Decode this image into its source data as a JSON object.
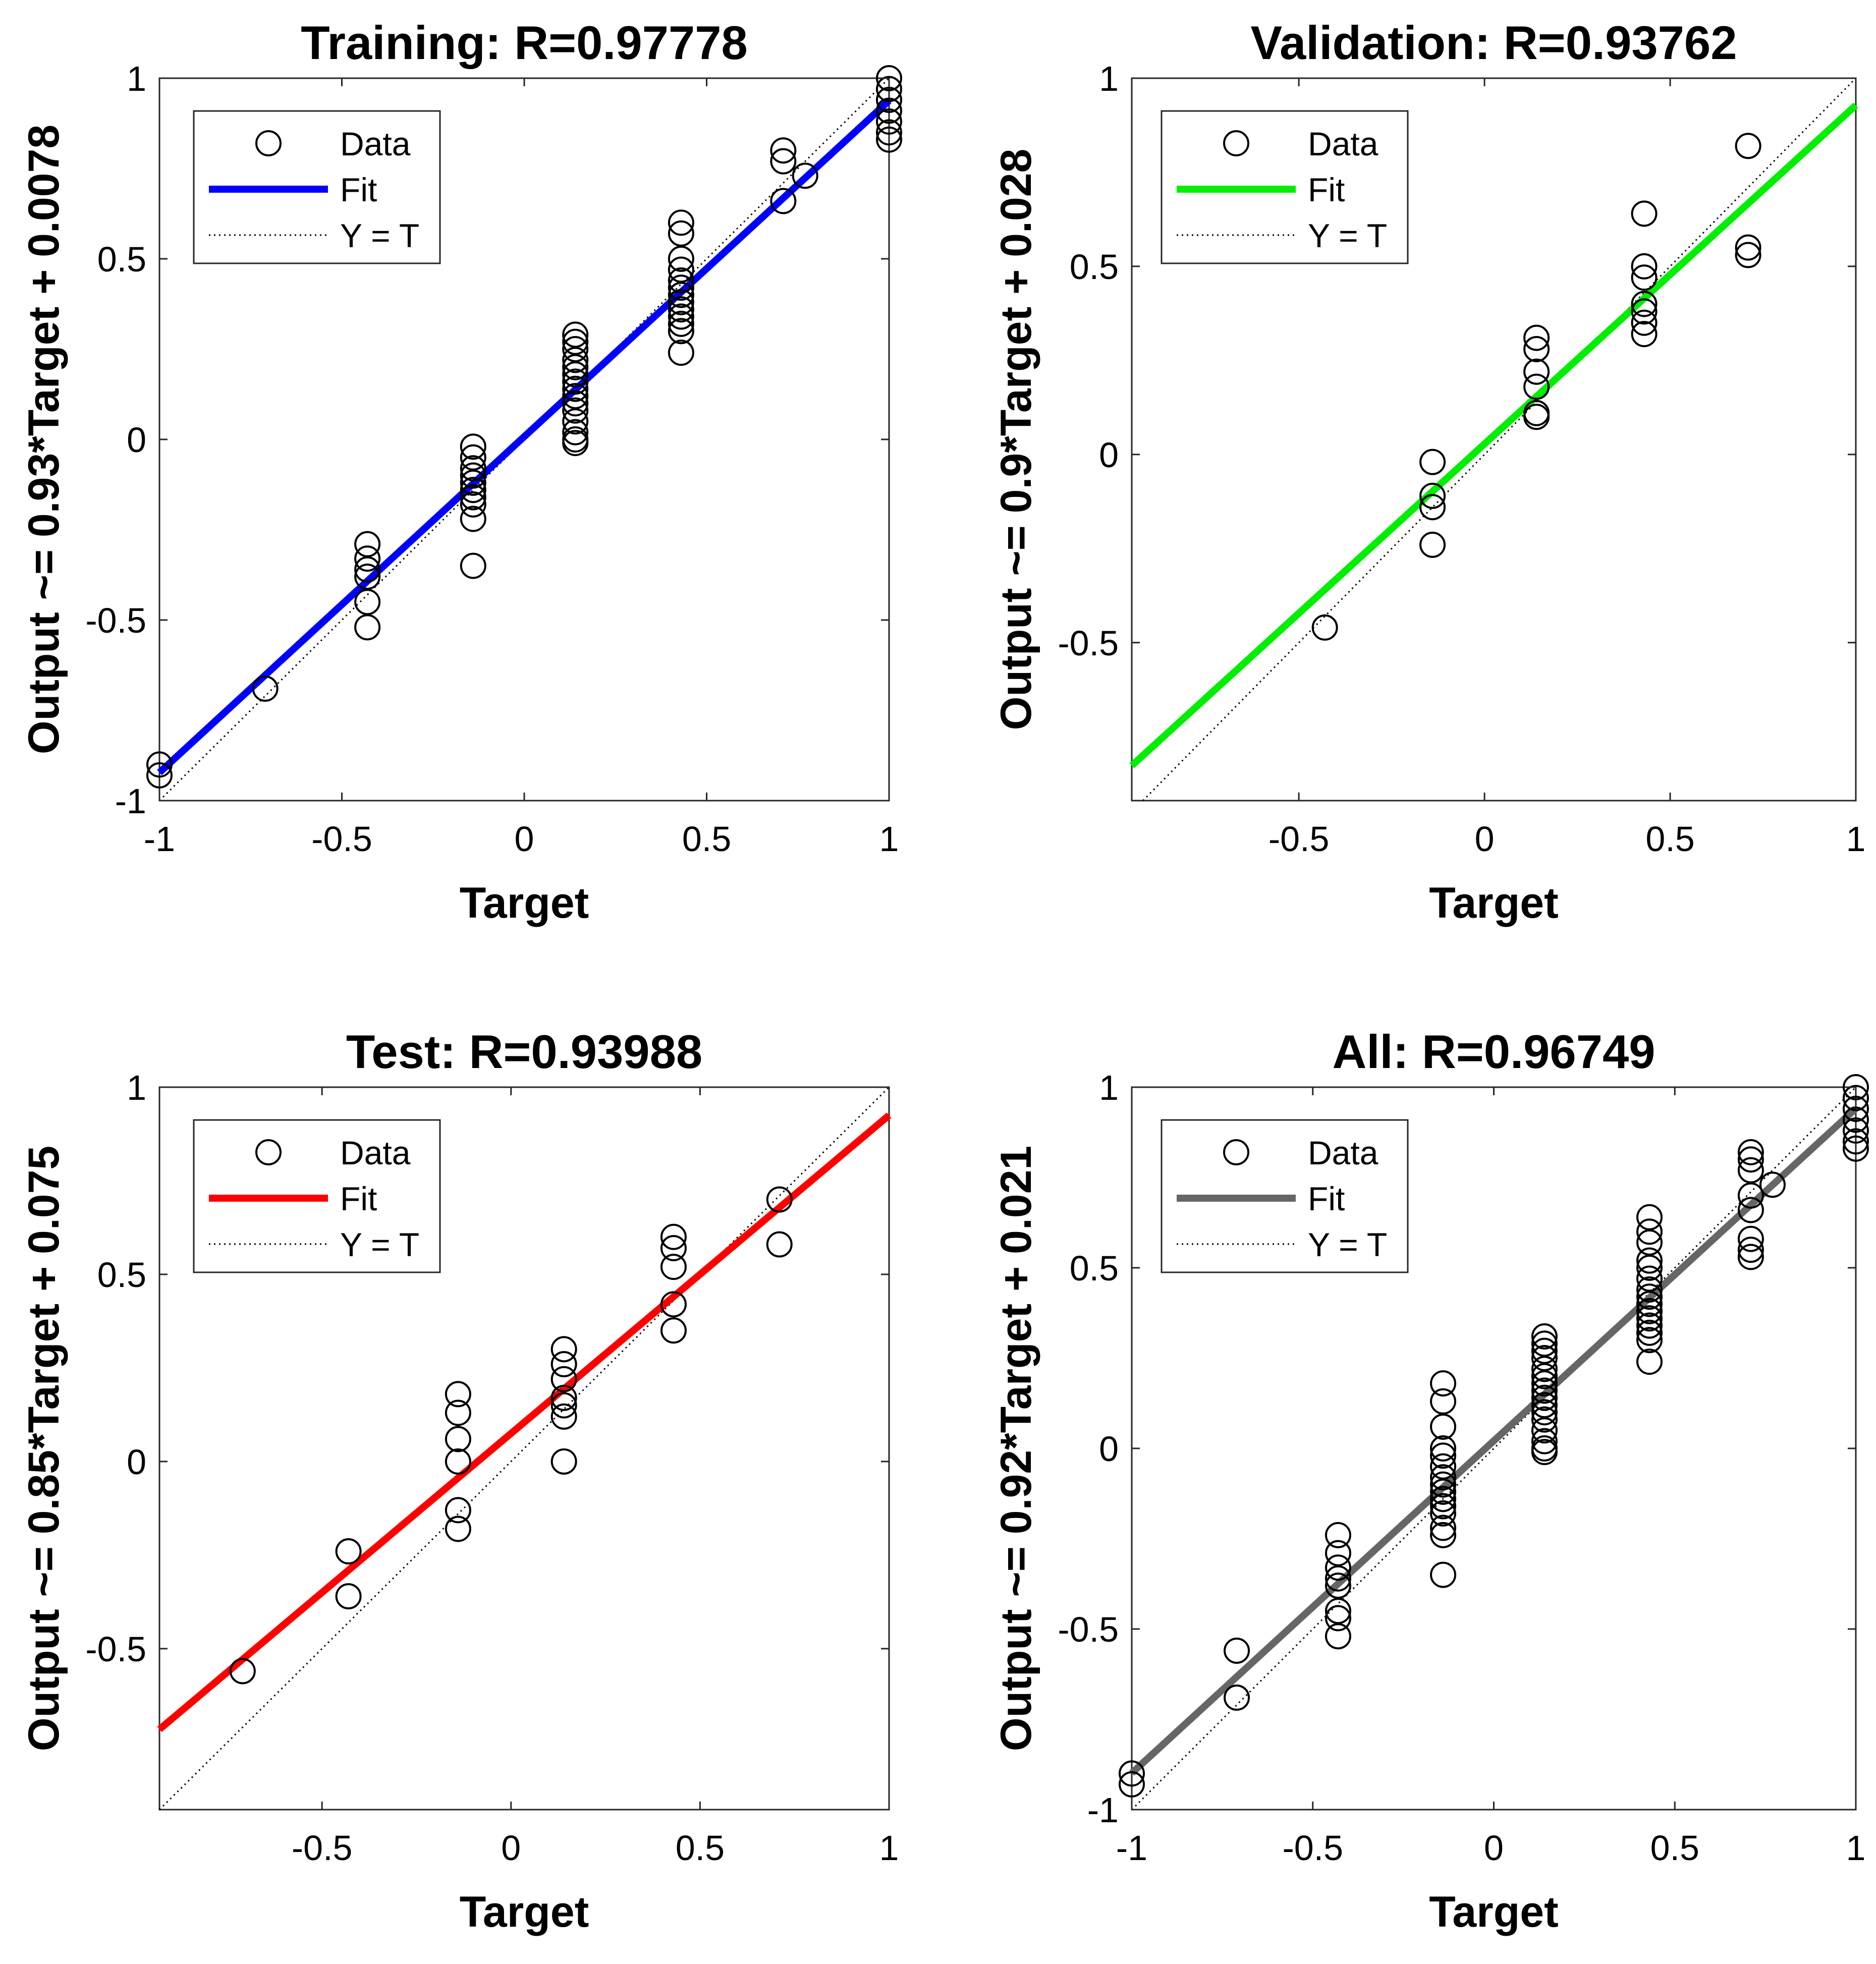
{
  "chart_data": [
    {
      "type": "scatter",
      "title": "Training: R=0.97778",
      "xlabel": "Target",
      "ylabel": "Output ~= 0.93*Target + 0.0078",
      "xlim": [
        -1,
        1
      ],
      "ylim": [
        -1,
        1
      ],
      "xticks": [
        -1,
        -0.5,
        0,
        0.5,
        1
      ],
      "xtick_labels": [
        "-1",
        "-0.5",
        "0",
        "0.5",
        "1"
      ],
      "yticks": [
        -1,
        -0.5,
        0,
        0.5,
        1
      ],
      "ytick_labels": [
        "-1",
        "-0.5",
        "0",
        "0.5",
        "1"
      ],
      "legend_position": "top-left",
      "legend": [
        "Data",
        "Fit",
        "Y = T"
      ],
      "fit": {
        "slope": 0.93,
        "intercept": 0.0078,
        "color": "#0000ff"
      },
      "points": [
        [
          -1,
          -0.9
        ],
        [
          -1,
          -0.93
        ],
        [
          -0.71,
          -0.69
        ],
        [
          -0.43,
          -0.29
        ],
        [
          -0.43,
          -0.33
        ],
        [
          -0.43,
          -0.36
        ],
        [
          -0.43,
          -0.38
        ],
        [
          -0.43,
          -0.45
        ],
        [
          -0.43,
          -0.52
        ],
        [
          -0.14,
          -0.02
        ],
        [
          -0.14,
          -0.05
        ],
        [
          -0.14,
          -0.08
        ],
        [
          -0.14,
          -0.1
        ],
        [
          -0.14,
          -0.12
        ],
        [
          -0.14,
          -0.14
        ],
        [
          -0.14,
          -0.16
        ],
        [
          -0.14,
          -0.18
        ],
        [
          -0.14,
          -0.22
        ],
        [
          -0.14,
          -0.35
        ],
        [
          0.14,
          0.29
        ],
        [
          0.14,
          0.27
        ],
        [
          0.14,
          0.25
        ],
        [
          0.14,
          0.22
        ],
        [
          0.14,
          0.2
        ],
        [
          0.14,
          0.18
        ],
        [
          0.14,
          0.16
        ],
        [
          0.14,
          0.14
        ],
        [
          0.14,
          0.12
        ],
        [
          0.14,
          0.1
        ],
        [
          0.14,
          0.08
        ],
        [
          0.14,
          0.05
        ],
        [
          0.14,
          0.02
        ],
        [
          0.14,
          0.0
        ],
        [
          0.14,
          -0.01
        ],
        [
          0.43,
          0.6
        ],
        [
          0.43,
          0.57
        ],
        [
          0.43,
          0.5
        ],
        [
          0.43,
          0.47
        ],
        [
          0.43,
          0.44
        ],
        [
          0.43,
          0.42
        ],
        [
          0.43,
          0.4
        ],
        [
          0.43,
          0.38
        ],
        [
          0.43,
          0.36
        ],
        [
          0.43,
          0.34
        ],
        [
          0.43,
          0.32
        ],
        [
          0.43,
          0.3
        ],
        [
          0.43,
          0.24
        ],
        [
          0.71,
          0.8
        ],
        [
          0.71,
          0.77
        ],
        [
          0.71,
          0.66
        ],
        [
          0.77,
          0.73
        ],
        [
          1,
          1.0
        ],
        [
          1,
          0.97
        ],
        [
          1,
          0.94
        ],
        [
          1,
          0.91
        ],
        [
          1,
          0.88
        ],
        [
          1,
          0.85
        ],
        [
          1,
          0.83
        ]
      ]
    },
    {
      "type": "scatter",
      "title": "Validation: R=0.93762",
      "xlabel": "Target",
      "ylabel": "Output ~= 0.9*Target + 0.028",
      "xlim": [
        -0.95,
        1
      ],
      "ylim": [
        -0.92,
        1
      ],
      "xticks": [
        -0.5,
        0,
        0.5,
        1
      ],
      "xtick_labels": [
        "-0.5",
        "0",
        "0.5",
        "1"
      ],
      "yticks": [
        -0.5,
        0,
        0.5,
        1
      ],
      "ytick_labels": [
        "-0.5",
        "0",
        "0.5",
        "1"
      ],
      "legend_position": "top-left",
      "legend": [
        "Data",
        "Fit",
        "Y = T"
      ],
      "fit": {
        "slope": 0.9,
        "intercept": 0.028,
        "color": "#00ee00"
      },
      "points": [
        [
          -0.43,
          -0.46
        ],
        [
          -0.14,
          -0.02
        ],
        [
          -0.14,
          -0.11
        ],
        [
          -0.14,
          -0.14
        ],
        [
          -0.14,
          -0.24
        ],
        [
          0.14,
          0.31
        ],
        [
          0.14,
          0.28
        ],
        [
          0.14,
          0.22
        ],
        [
          0.14,
          0.18
        ],
        [
          0.14,
          0.11
        ],
        [
          0.14,
          0.1
        ],
        [
          0.43,
          0.64
        ],
        [
          0.43,
          0.5
        ],
        [
          0.43,
          0.47
        ],
        [
          0.43,
          0.4
        ],
        [
          0.43,
          0.38
        ],
        [
          0.43,
          0.35
        ],
        [
          0.43,
          0.32
        ],
        [
          0.71,
          0.82
        ],
        [
          0.71,
          0.55
        ],
        [
          0.71,
          0.53
        ]
      ]
    },
    {
      "type": "scatter",
      "title": "Test: R=0.93988",
      "xlabel": "Target",
      "ylabel": "Output ~= 0.85*Target + 0.075",
      "xlim": [
        -0.93,
        1
      ],
      "ylim": [
        -0.93,
        1
      ],
      "xticks": [
        -0.5,
        0,
        0.5,
        1
      ],
      "xtick_labels": [
        "-0.5",
        "0",
        "0.5",
        "1"
      ],
      "yticks": [
        -0.5,
        0,
        0.5,
        1
      ],
      "ytick_labels": [
        "-0.5",
        "0",
        "0.5",
        "1"
      ],
      "legend_position": "top-left",
      "legend": [
        "Data",
        "Fit",
        "Y = T"
      ],
      "fit": {
        "slope": 0.85,
        "intercept": 0.075,
        "color": "#ff0000"
      },
      "points": [
        [
          -0.71,
          -0.56
        ],
        [
          -0.43,
          -0.24
        ],
        [
          -0.43,
          -0.36
        ],
        [
          -0.14,
          0.18
        ],
        [
          -0.14,
          0.13
        ],
        [
          -0.14,
          0.06
        ],
        [
          -0.14,
          0.0
        ],
        [
          -0.14,
          -0.13
        ],
        [
          -0.14,
          -0.18
        ],
        [
          0.14,
          0.3
        ],
        [
          0.14,
          0.26
        ],
        [
          0.14,
          0.22
        ],
        [
          0.14,
          0.17
        ],
        [
          0.14,
          0.15
        ],
        [
          0.14,
          0.12
        ],
        [
          0.14,
          0.0
        ],
        [
          0.43,
          0.6
        ],
        [
          0.43,
          0.57
        ],
        [
          0.43,
          0.52
        ],
        [
          0.43,
          0.42
        ],
        [
          0.43,
          0.35
        ],
        [
          0.71,
          0.7
        ],
        [
          0.71,
          0.58
        ]
      ]
    },
    {
      "type": "scatter",
      "title": "All: R=0.96749",
      "xlabel": "Target",
      "ylabel": "Output ~= 0.92*Target + 0.021",
      "xlim": [
        -1,
        1
      ],
      "ylim": [
        -1,
        1
      ],
      "xticks": [
        -1,
        -0.5,
        0,
        0.5,
        1
      ],
      "xtick_labels": [
        "-1",
        "-0.5",
        "0",
        "0.5",
        "1"
      ],
      "yticks": [
        -1,
        -0.5,
        0,
        0.5,
        1
      ],
      "ytick_labels": [
        "-1",
        "-0.5",
        "0",
        "0.5",
        "1"
      ],
      "legend_position": "top-left",
      "legend": [
        "Data",
        "Fit",
        "Y = T"
      ],
      "fit": {
        "slope": 0.92,
        "intercept": 0.021,
        "color": "#666666"
      },
      "points": [
        [
          -1,
          -0.9
        ],
        [
          -1,
          -0.93
        ],
        [
          -0.71,
          -0.56
        ],
        [
          -0.71,
          -0.69
        ],
        [
          -0.43,
          -0.24
        ],
        [
          -0.43,
          -0.29
        ],
        [
          -0.43,
          -0.33
        ],
        [
          -0.43,
          -0.36
        ],
        [
          -0.43,
          -0.38
        ],
        [
          -0.43,
          -0.45
        ],
        [
          -0.43,
          -0.47
        ],
        [
          -0.43,
          -0.52
        ],
        [
          -0.14,
          0.18
        ],
        [
          -0.14,
          0.13
        ],
        [
          -0.14,
          0.06
        ],
        [
          -0.14,
          0.0
        ],
        [
          -0.14,
          -0.02
        ],
        [
          -0.14,
          -0.05
        ],
        [
          -0.14,
          -0.08
        ],
        [
          -0.14,
          -0.1
        ],
        [
          -0.14,
          -0.12
        ],
        [
          -0.14,
          -0.14
        ],
        [
          -0.14,
          -0.16
        ],
        [
          -0.14,
          -0.18
        ],
        [
          -0.14,
          -0.22
        ],
        [
          -0.14,
          -0.24
        ],
        [
          -0.14,
          -0.35
        ],
        [
          0.14,
          0.31
        ],
        [
          0.14,
          0.29
        ],
        [
          0.14,
          0.27
        ],
        [
          0.14,
          0.25
        ],
        [
          0.14,
          0.22
        ],
        [
          0.14,
          0.2
        ],
        [
          0.14,
          0.18
        ],
        [
          0.14,
          0.16
        ],
        [
          0.14,
          0.14
        ],
        [
          0.14,
          0.12
        ],
        [
          0.14,
          0.1
        ],
        [
          0.14,
          0.08
        ],
        [
          0.14,
          0.05
        ],
        [
          0.14,
          0.02
        ],
        [
          0.14,
          0.0
        ],
        [
          0.14,
          -0.01
        ],
        [
          0.43,
          0.64
        ],
        [
          0.43,
          0.6
        ],
        [
          0.43,
          0.57
        ],
        [
          0.43,
          0.52
        ],
        [
          0.43,
          0.5
        ],
        [
          0.43,
          0.47
        ],
        [
          0.43,
          0.44
        ],
        [
          0.43,
          0.42
        ],
        [
          0.43,
          0.4
        ],
        [
          0.43,
          0.38
        ],
        [
          0.43,
          0.36
        ],
        [
          0.43,
          0.34
        ],
        [
          0.43,
          0.32
        ],
        [
          0.43,
          0.3
        ],
        [
          0.43,
          0.24
        ],
        [
          0.71,
          0.82
        ],
        [
          0.71,
          0.8
        ],
        [
          0.71,
          0.77
        ],
        [
          0.71,
          0.7
        ],
        [
          0.71,
          0.66
        ],
        [
          0.71,
          0.58
        ],
        [
          0.71,
          0.55
        ],
        [
          0.71,
          0.53
        ],
        [
          0.77,
          0.73
        ],
        [
          1,
          1.0
        ],
        [
          1,
          0.97
        ],
        [
          1,
          0.94
        ],
        [
          1,
          0.91
        ],
        [
          1,
          0.88
        ],
        [
          1,
          0.85
        ],
        [
          1,
          0.83
        ]
      ]
    }
  ]
}
